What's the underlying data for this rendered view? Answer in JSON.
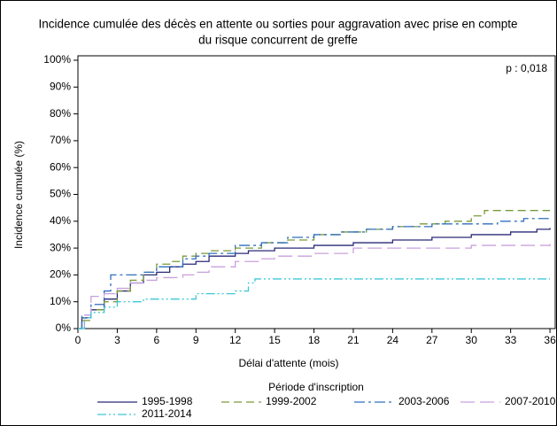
{
  "chart_data": {
    "type": "line",
    "step": "post",
    "title_lines": [
      "Incidence cumulée des décès en attente ou sorties pour aggravation avec prise en compte",
      "du risque concurrent de greffe"
    ],
    "annotation": "p : 0,018",
    "x_label": "Délai d'attente (mois)",
    "y_label": "Incidence cumulée (%)",
    "legend_title": "Période d'inscription",
    "xlim": [
      0,
      36.4
    ],
    "xticks": [
      0,
      3,
      6,
      9,
      12,
      15,
      18,
      21,
      24,
      27,
      30,
      33,
      36
    ],
    "ylim": [
      0,
      100
    ],
    "yticks": [
      {
        "value": 0,
        "label": "0%"
      },
      {
        "value": 10,
        "label": "10%"
      },
      {
        "value": 20,
        "label": "20%"
      },
      {
        "value": 30,
        "label": "30%"
      },
      {
        "value": 40,
        "label": "40%"
      },
      {
        "value": 50,
        "label": "50%"
      },
      {
        "value": 60,
        "label": "60%"
      },
      {
        "value": 70,
        "label": "70%"
      },
      {
        "value": 80,
        "label": "80%"
      },
      {
        "value": 90,
        "label": "90%"
      },
      {
        "value": 100,
        "label": "100%"
      }
    ],
    "series": [
      {
        "name": "1995-1998",
        "color": "#2a2a78",
        "dash": "none",
        "x": [
          0,
          0.3,
          1,
          2,
          3,
          4,
          5,
          6,
          7,
          8,
          9,
          10,
          12,
          13,
          15,
          18,
          21,
          24,
          27,
          30,
          33,
          35,
          36
        ],
        "values": [
          0,
          4,
          7,
          11,
          14,
          17,
          20,
          21,
          23,
          24,
          25,
          27,
          28,
          29,
          30,
          31,
          32,
          33,
          34,
          35,
          36,
          37,
          37.5
        ]
      },
      {
        "name": "1999-2002",
        "color": "#7a9a3a",
        "dash": "9,5",
        "x": [
          0,
          0.3,
          1,
          2,
          3,
          4,
          5,
          6,
          7,
          8,
          9,
          10,
          12,
          14,
          16,
          18,
          20,
          22,
          24,
          26,
          28,
          30,
          31,
          36
        ],
        "values": [
          0,
          3,
          7,
          10,
          14,
          18,
          21,
          24,
          25,
          27,
          28,
          29,
          30,
          32,
          33,
          35,
          36,
          37,
          38,
          39,
          40,
          42,
          44,
          44
        ]
      },
      {
        "name": "2003-2006",
        "color": "#2f6fbf",
        "dash": "12,4,3,4",
        "x": [
          0,
          0.3,
          1,
          2,
          2.5,
          4,
          5,
          6,
          8,
          9,
          10,
          12,
          14,
          16,
          18,
          20,
          22,
          24,
          27,
          30,
          32,
          34,
          36
        ],
        "values": [
          0,
          5,
          9,
          14,
          20,
          20,
          21,
          23,
          26,
          27,
          28,
          31,
          32,
          34,
          35,
          36,
          37,
          38,
          39,
          39,
          40,
          41,
          41
        ]
      },
      {
        "name": "2007-2010",
        "color": "#c9a0dc",
        "dash": "16,6",
        "x": [
          0,
          0.5,
          1,
          2,
          3,
          4,
          5,
          6,
          8,
          9,
          10,
          12,
          14,
          15,
          18,
          21,
          27,
          30,
          36
        ],
        "values": [
          0,
          5,
          12,
          13,
          15,
          17,
          18,
          19,
          20,
          21,
          23,
          25,
          26,
          27,
          28,
          30,
          30,
          31,
          31.5
        ]
      },
      {
        "name": "2011-2014",
        "color": "#3fc8d8",
        "dash": "10,3,2,3,2,3",
        "x": [
          0,
          0.5,
          1,
          2,
          3,
          5,
          7,
          9,
          12,
          13,
          13.5,
          36
        ],
        "values": [
          0,
          4,
          6,
          8,
          10,
          11,
          11,
          13,
          14,
          17,
          18.5,
          18.5
        ]
      }
    ]
  }
}
